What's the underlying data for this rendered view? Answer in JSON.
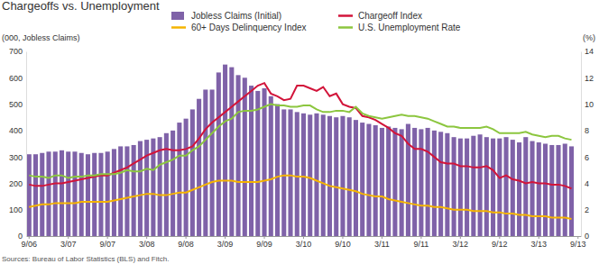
{
  "chart_data": {
    "type": "bar",
    "title": "Chargeoffs vs. Unemployment",
    "y_label": "(000, Jobless Claims)",
    "y2_label": "(%)",
    "source": "Sources: Bureau of Labor Statistics (BLS) and Fitch.",
    "legend": "top",
    "grid": false,
    "categories": [
      "9/06",
      null,
      null,
      null,
      null,
      null,
      "3/07",
      null,
      null,
      null,
      null,
      null,
      "9/07",
      null,
      null,
      null,
      null,
      null,
      "3/08",
      null,
      null,
      null,
      null,
      null,
      "9/08",
      null,
      null,
      null,
      null,
      null,
      "3/09",
      null,
      null,
      null,
      null,
      null,
      "9/09",
      null,
      null,
      null,
      null,
      null,
      "3/10",
      null,
      null,
      null,
      null,
      null,
      "9/10",
      null,
      null,
      null,
      null,
      null,
      "3/11",
      null,
      null,
      null,
      null,
      null,
      "9/11",
      null,
      null,
      null,
      null,
      null,
      "3/12",
      null,
      null,
      null,
      null,
      null,
      "9/12",
      null,
      null,
      null,
      null,
      null,
      "3/13",
      null,
      null,
      null,
      null,
      null,
      "9/13"
    ],
    "ylim": [
      0,
      700
    ],
    "yticks": [
      0,
      100,
      200,
      300,
      400,
      500,
      600,
      700
    ],
    "y2lim": [
      0,
      14
    ],
    "y2ticks": [
      0,
      2,
      4,
      6,
      8,
      10,
      12,
      14
    ],
    "series": [
      {
        "name": "Jobless Claims (Initial)",
        "type": "bar",
        "color": "#7f62a8",
        "values": [
          310,
          310,
          315,
          320,
          320,
          325,
          320,
          320,
          315,
          310,
          315,
          315,
          320,
          330,
          340,
          340,
          345,
          360,
          365,
          370,
          375,
          390,
          400,
          430,
          445,
          480,
          520,
          555,
          555,
          620,
          650,
          640,
          610,
          600,
          570,
          550,
          560,
          530,
          500,
          480,
          480,
          470,
          465,
          460,
          465,
          460,
          455,
          450,
          455,
          450,
          440,
          430,
          425,
          420,
          410,
          415,
          410,
          405,
          425,
          410,
          405,
          410,
          400,
          395,
          390,
          375,
          370,
          370,
          380,
          385,
          375,
          370,
          370,
          375,
          365,
          355,
          375,
          360,
          355,
          350,
          345,
          345,
          350,
          340,
          null
        ]
      },
      {
        "name": "Chargeoff Index",
        "type": "line",
        "axis": "y2",
        "color": "#d2143a",
        "values": [
          3.9,
          3.8,
          3.8,
          3.9,
          4.0,
          4.0,
          4.1,
          4.2,
          4.3,
          4.4,
          4.5,
          4.6,
          4.6,
          4.8,
          5.0,
          5.2,
          5.5,
          5.8,
          6.1,
          6.3,
          6.5,
          6.6,
          6.5,
          6.5,
          6.6,
          6.8,
          7.4,
          8.1,
          8.6,
          9.0,
          9.4,
          9.8,
          10.2,
          10.6,
          11.0,
          11.4,
          11.6,
          10.8,
          10.6,
          10.3,
          10.4,
          11.4,
          11.4,
          11.2,
          11.0,
          11.3,
          10.6,
          10.8,
          10.0,
          9.8,
          9.7,
          9.1,
          9.0,
          8.8,
          8.5,
          8.2,
          7.8,
          7.6,
          7.0,
          6.6,
          6.6,
          6.4,
          6.0,
          5.6,
          5.5,
          5.5,
          5.3,
          5.3,
          5.2,
          5.2,
          5.3,
          5.0,
          4.4,
          4.6,
          4.3,
          4.2,
          4.0,
          4.1,
          4.0,
          4.0,
          3.9,
          3.9,
          3.8,
          3.6,
          null
        ]
      },
      {
        "name": "60+ Days Delinquency Index",
        "type": "line",
        "axis": "y2",
        "color": "#f5b400",
        "values": [
          2.2,
          2.3,
          2.4,
          2.4,
          2.5,
          2.5,
          2.5,
          2.5,
          2.6,
          2.6,
          2.6,
          2.6,
          2.6,
          2.7,
          2.8,
          2.9,
          3.0,
          3.1,
          3.2,
          3.2,
          3.1,
          3.1,
          3.2,
          3.3,
          3.3,
          3.5,
          3.7,
          3.9,
          4.1,
          4.2,
          4.2,
          4.2,
          4.1,
          4.1,
          4.1,
          4.1,
          4.2,
          4.3,
          4.5,
          4.6,
          4.6,
          4.5,
          4.5,
          4.4,
          4.2,
          4.0,
          3.8,
          3.7,
          3.6,
          3.5,
          3.4,
          3.2,
          3.1,
          3.0,
          3.0,
          2.8,
          2.7,
          2.6,
          2.5,
          2.4,
          2.3,
          2.3,
          2.2,
          2.2,
          2.1,
          2.0,
          2.0,
          2.0,
          1.9,
          1.9,
          1.9,
          1.8,
          1.8,
          1.7,
          1.7,
          1.6,
          1.6,
          1.5,
          1.5,
          1.5,
          1.4,
          1.4,
          1.4,
          1.3,
          null
        ]
      },
      {
        "name": "U.S. Unemployment Rate",
        "type": "line",
        "axis": "y2",
        "color": "#8cc63f",
        "values": [
          4.6,
          4.5,
          4.5,
          4.4,
          4.6,
          4.6,
          4.4,
          4.5,
          4.5,
          4.6,
          4.6,
          4.7,
          4.7,
          4.7,
          4.8,
          5.0,
          4.9,
          4.9,
          5.1,
          5.0,
          5.4,
          5.6,
          5.8,
          6.1,
          6.1,
          6.5,
          6.8,
          7.3,
          7.8,
          8.3,
          8.7,
          8.9,
          9.4,
          9.5,
          9.5,
          9.6,
          9.8,
          10.0,
          9.9,
          9.9,
          9.8,
          9.8,
          9.9,
          9.9,
          9.6,
          9.4,
          9.4,
          9.5,
          9.5,
          9.4,
          9.8,
          9.3,
          9.1,
          9.0,
          8.9,
          9.0,
          9.1,
          9.2,
          9.1,
          9.1,
          9.0,
          8.9,
          8.7,
          8.5,
          8.3,
          8.3,
          8.2,
          8.2,
          8.2,
          8.2,
          8.3,
          8.1,
          7.8,
          7.8,
          7.8,
          7.8,
          7.9,
          7.7,
          7.6,
          7.5,
          7.6,
          7.6,
          7.4,
          7.3,
          null
        ]
      }
    ]
  }
}
